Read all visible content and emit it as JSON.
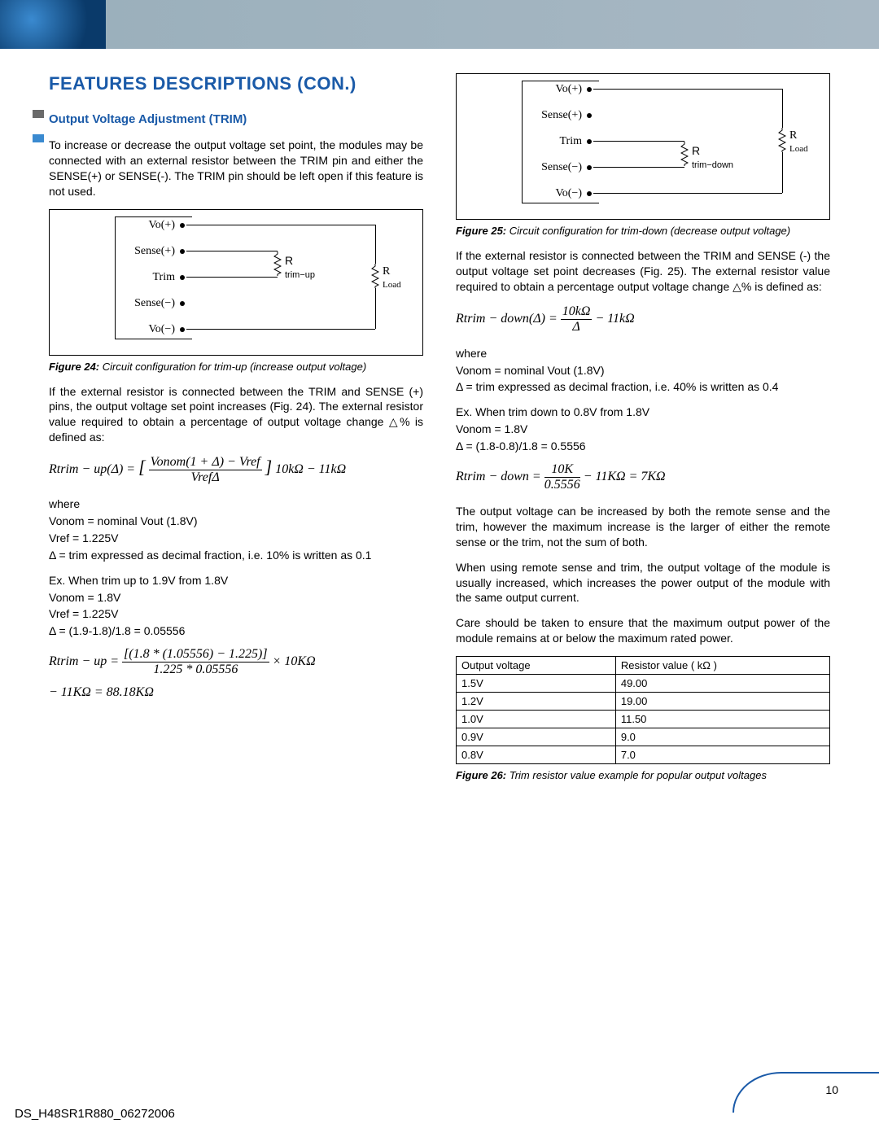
{
  "header": {
    "page_title": "FEATURES DESCRIPTIONS (CON.)"
  },
  "side_marks": {
    "colors": [
      "#6a6a6a",
      "#3a8ad0"
    ]
  },
  "left_col": {
    "section_title": "Output Voltage Adjustment (TRIM)",
    "intro": "To increase or decrease the output voltage set point, the modules may be connected with an external resistor between the TRIM pin and either the SENSE(+) or SENSE(-). The TRIM pin should be left open if this feature is not used.",
    "fig24": {
      "pins": [
        "Vo(+)",
        "Sense(+)",
        "Trim",
        "Sense(−)",
        "Vo(−)"
      ],
      "r1": "R trim−up",
      "r2": "R Load",
      "caption_label": "Figure 24:",
      "caption": " Circuit configuration for trim-up (increase output voltage)"
    },
    "para2": "If the external resistor is connected between the TRIM and SENSE (+) pins, the output voltage set point increases (Fig. 24). The external resistor value required to obtain a percentage of output voltage change △% is defined as:",
    "formula1_html": "Rtrim − up(Δ) = <span style='font-size:22px'>[</span> <span style='display:inline-block;text-align:center;vertical-align:middle'><span style='border-bottom:1px solid #000;display:block;padding:0 2px'>Vonom(1 + Δ) − Vref</span><span>VrefΔ</span></span> <span style='font-size:22px'>]</span> 10kΩ − 11kΩ",
    "where": "where",
    "vonom_line": "Vonom = nominal Vout (1.8V)",
    "vref_line": "Vref = 1.225V",
    "delta_line": "Δ = trim expressed as decimal fraction, i.e. 10% is written as 0.1",
    "ex_intro": "Ex. When trim up to 1.9V from 1.8V",
    "ex_vonom": "Vonom = 1.8V",
    "ex_vref": "Vref = 1.225V",
    "ex_delta": "Δ = (1.9-1.8)/1.8 = 0.05556",
    "formula2_html": "Rtrim − up = <span style='display:inline-block;text-align:center;vertical-align:middle'><span style='border-bottom:1px solid #000;display:block;padding:0 2px'>[(1.8 * (1.05556) − 1.225)]</span><span>1.225 * 0.05556</span></span> × 10KΩ",
    "formula2b": "− 11KΩ = 88.18KΩ"
  },
  "right_col": {
    "fig25": {
      "pins": [
        "Vo(+)",
        "Sense(+)",
        "Trim",
        "Sense(−)",
        "Vo(−)"
      ],
      "r1": "R trim−down",
      "r2": "R Load",
      "caption_label": "Figure 25:",
      "caption": " Circuit configuration for trim-down (decrease output voltage)"
    },
    "para1": "If the external resistor is connected between the TRIM and SENSE (-) the output voltage set point decreases (Fig. 25). The external resistor value required to obtain a percentage output voltage change △% is defined as:",
    "formula1_html": "Rtrim − down(Δ) = <span style='display:inline-block;text-align:center;vertical-align:middle'><span style='border-bottom:1px solid #000;display:block;padding:0 2px'>10kΩ</span><span>Δ</span></span> − 11kΩ",
    "where": "where",
    "vonom_line": "Vonom = nominal Vout (1.8V)",
    "delta_line": "Δ = trim expressed as decimal fraction, i.e. 40% is written as 0.4",
    "ex_intro": "Ex. When trim down to 0.8V from 1.8V",
    "ex_vonom": "Vonom = 1.8V",
    "ex_delta": "Δ = (1.8-0.8)/1.8 = 0.5556",
    "formula2_html": "Rtrim − down = <span style='display:inline-block;text-align:center;vertical-align:middle'><span style='border-bottom:1px solid #000;display:block;padding:0 2px'>10K</span><span>0.5556</span></span> − 11KΩ = 7KΩ",
    "para2": "The output voltage can be increased by both the remote sense and the trim, however the maximum increase is the larger of either the remote sense or the trim, not the sum of both.",
    "para3": "When using remote sense and trim, the output voltage of the module is usually increased, which increases the power output of the module with the same output current.",
    "para4": "Care should be taken to ensure that the maximum output power of the module remains at or below the maximum rated power.",
    "table": {
      "headers": [
        "Output voltage",
        "Resistor value ( kΩ )"
      ],
      "rows": [
        [
          "1.5V",
          "49.00"
        ],
        [
          "1.2V",
          "19.00"
        ],
        [
          "1.0V",
          "11.50"
        ],
        [
          "0.9V",
          "9.0"
        ],
        [
          "0.8V",
          "7.0"
        ]
      ],
      "caption_label": "Figure 26:",
      "caption": " Trim resistor value example for popular output voltages"
    }
  },
  "footer": {
    "doc_id": "DS_H48SR1R880_06272006",
    "page_num": "10"
  }
}
